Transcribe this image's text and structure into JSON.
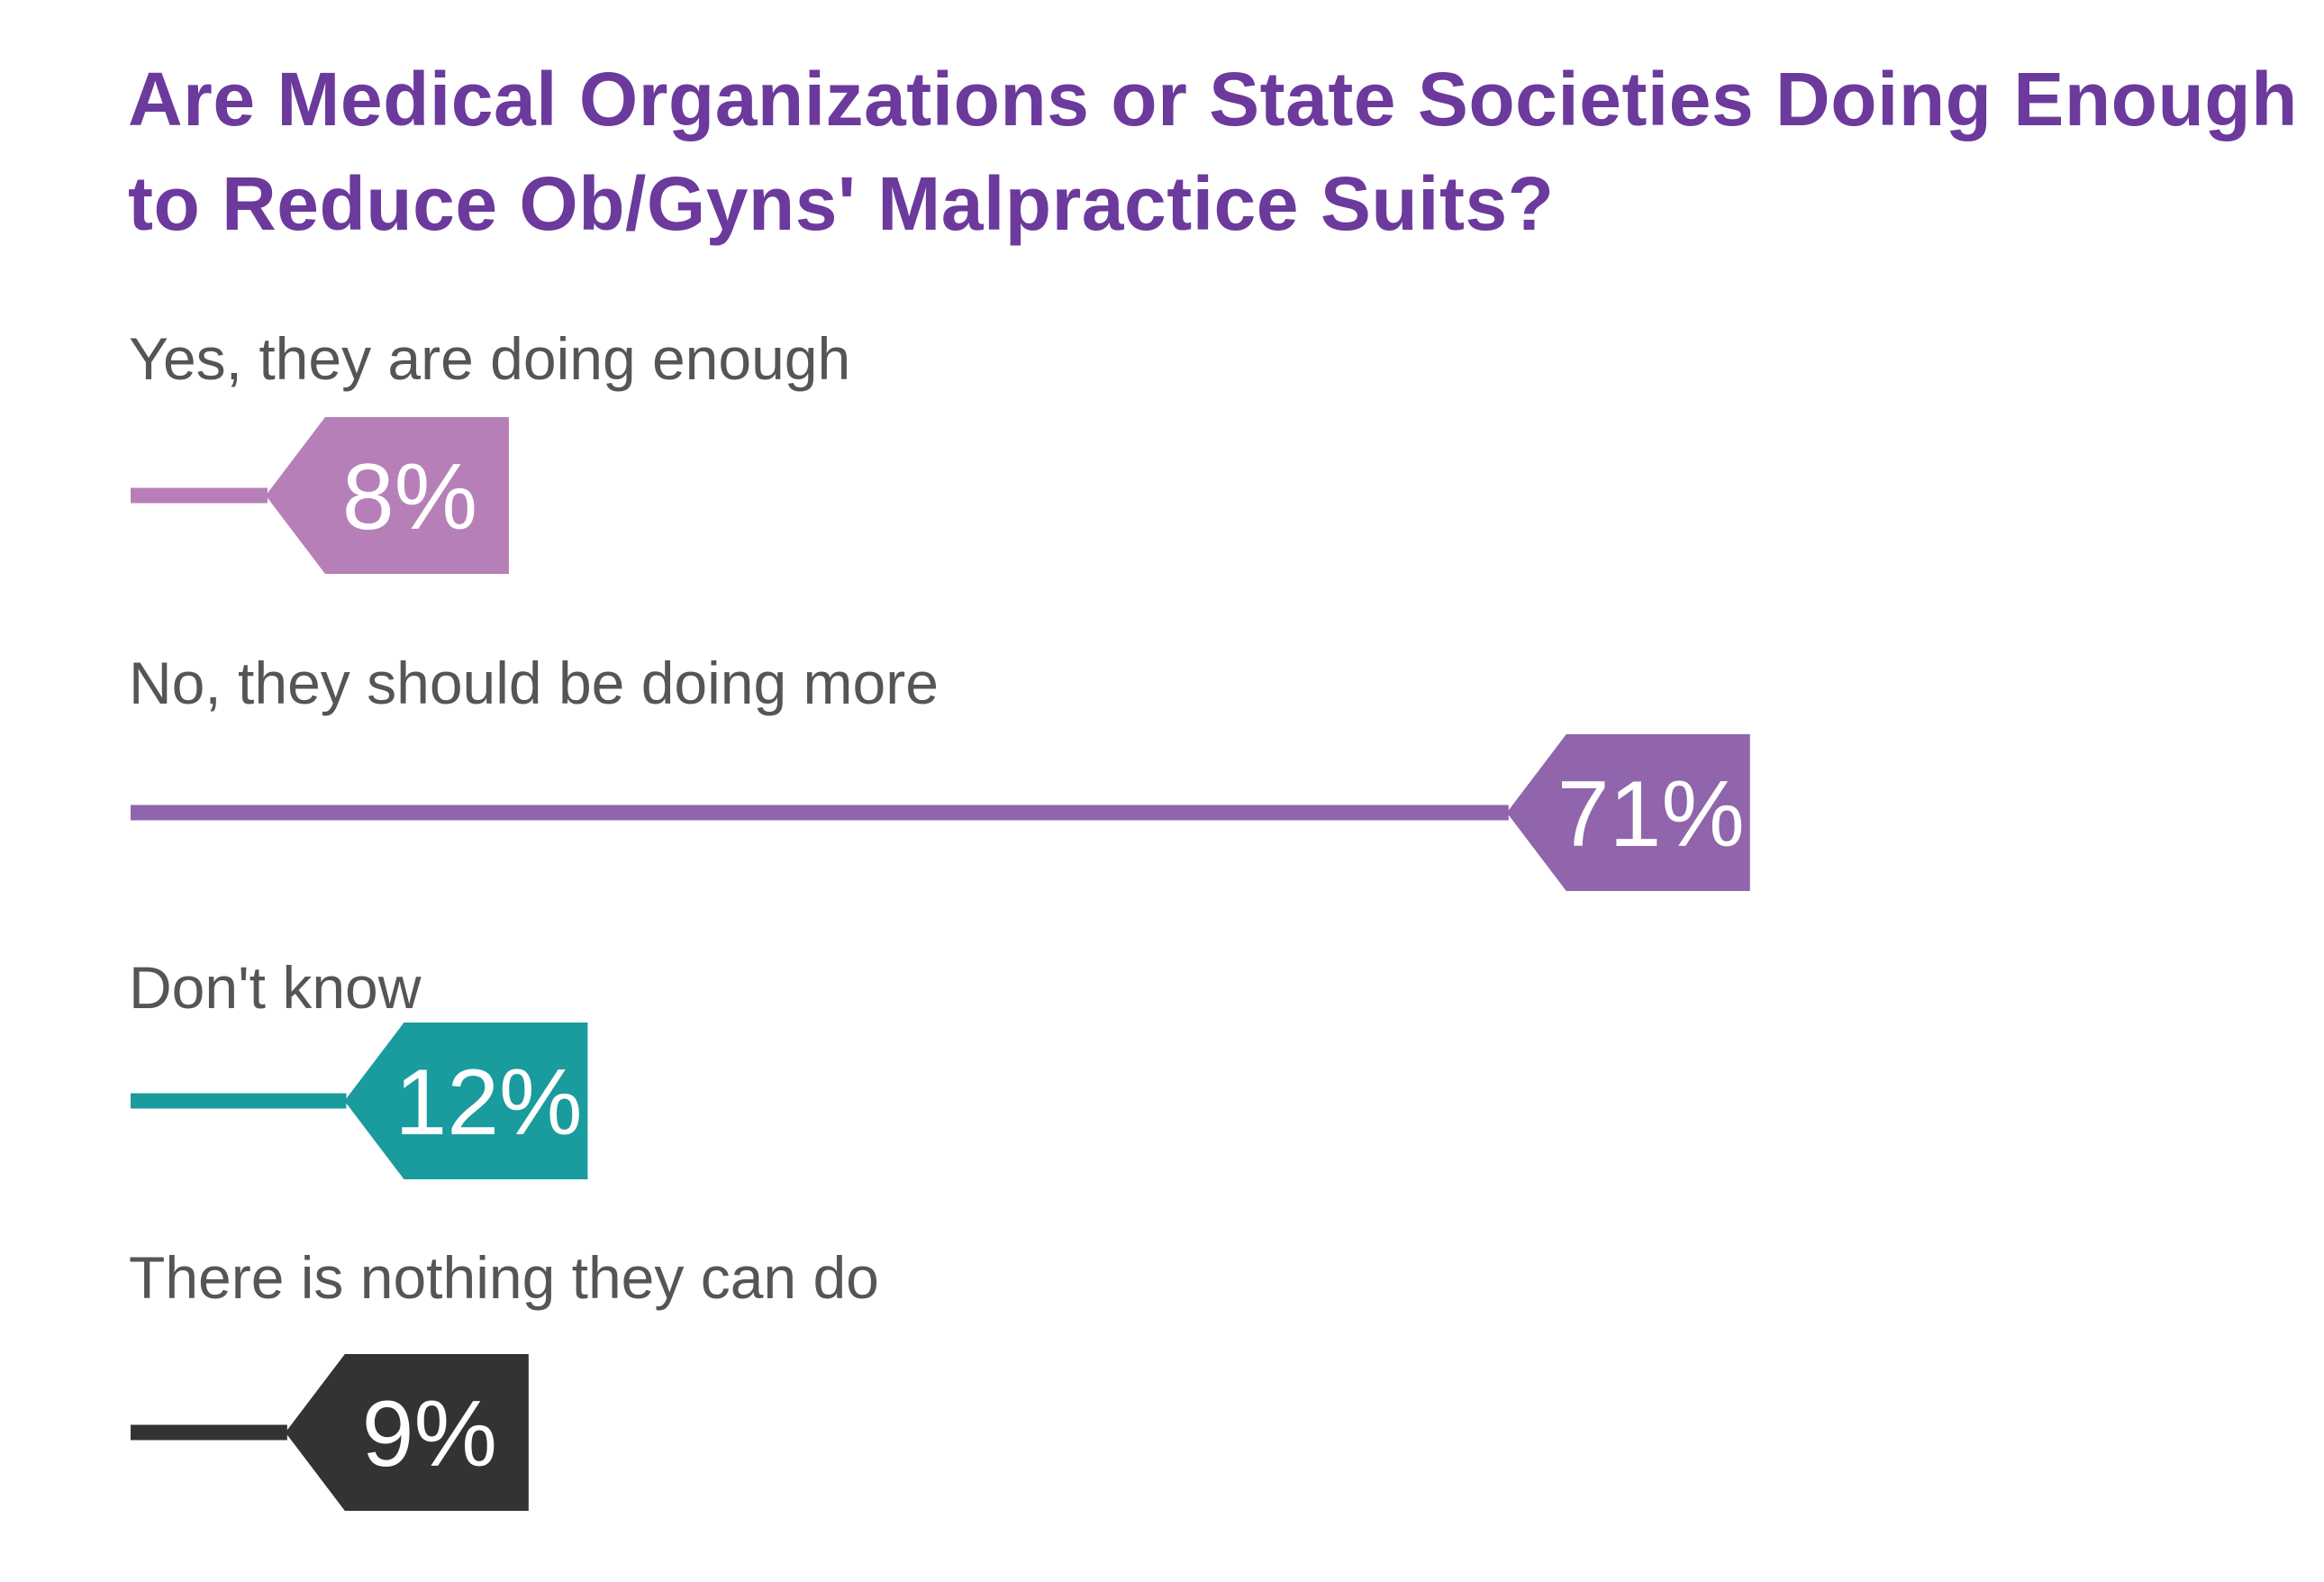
{
  "chart_data": {
    "type": "bar",
    "orientation": "horizontal",
    "title": "Are Medical Organizations or State Societies Doing Enough to Reduce Ob/Gyns' Malpractice Suits?",
    "categories": [
      "Yes, they are doing enough",
      "No, they should be doing more",
      "Don't know",
      "There is nothing they can do"
    ],
    "values": [
      8,
      71,
      12,
      9
    ],
    "value_labels": [
      "8%",
      "71%",
      "12%",
      "9%"
    ],
    "unit": "%",
    "colors": [
      "#b77fb8",
      "#9065ab",
      "#1a9b9d",
      "#333333"
    ],
    "xlim": [
      0,
      100
    ],
    "grid": false,
    "legend": "none"
  }
}
